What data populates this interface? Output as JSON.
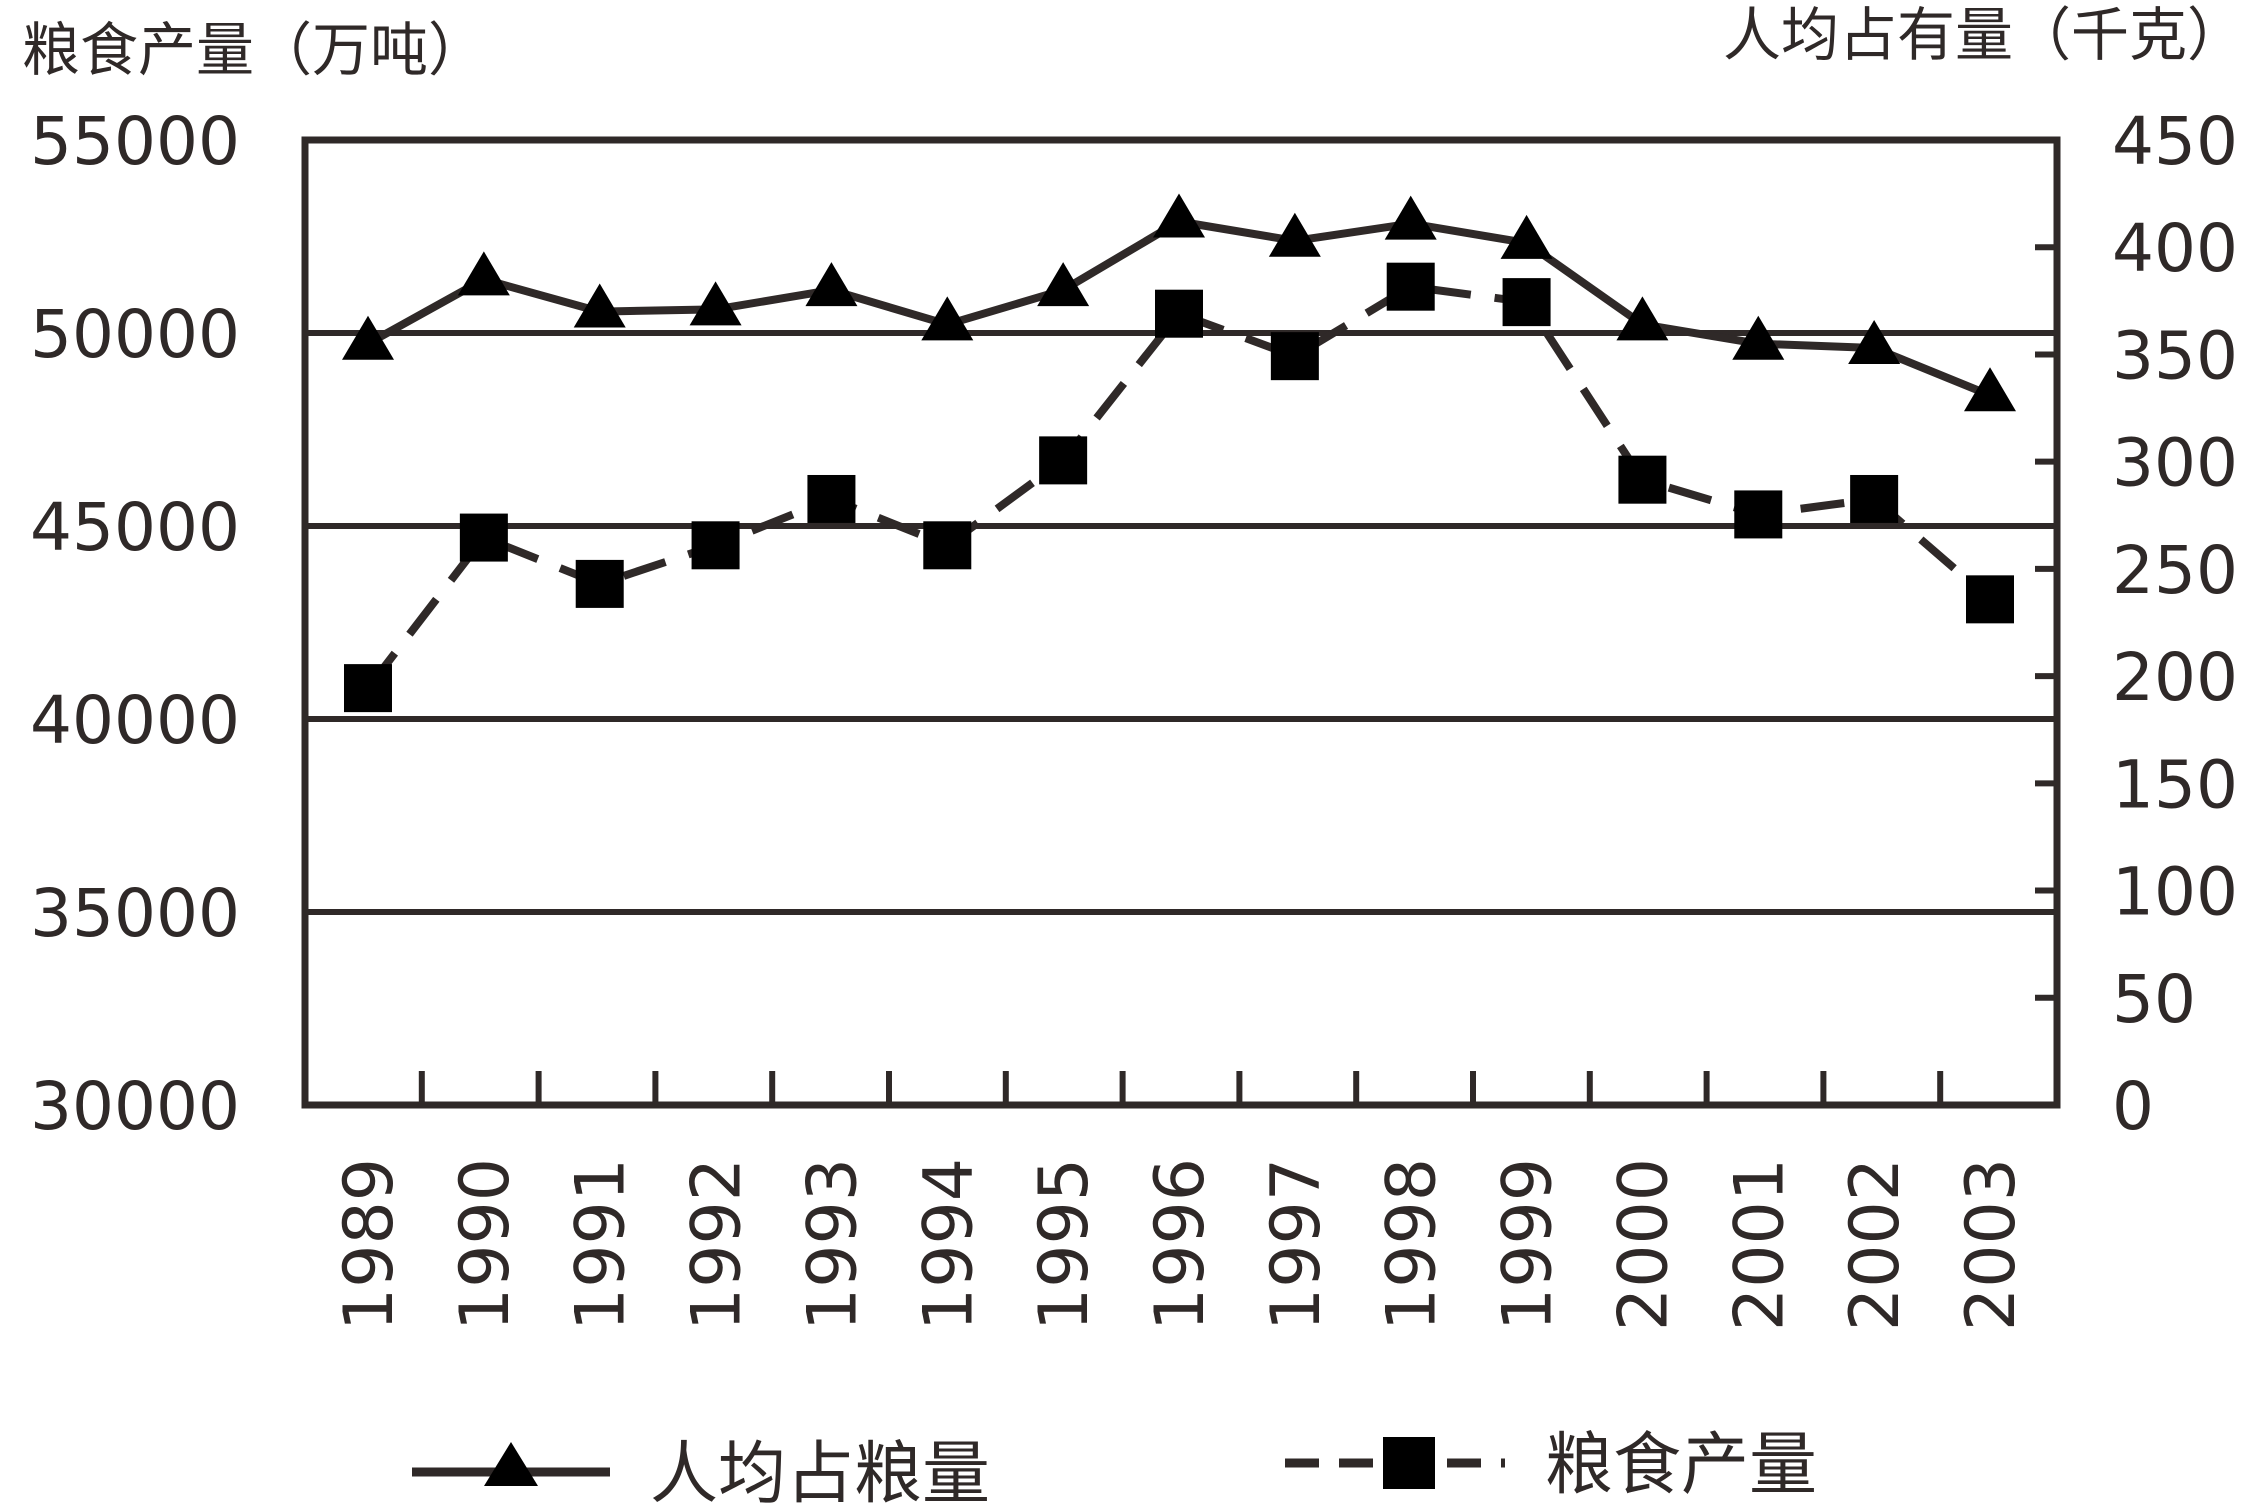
{
  "chart_data": {
    "type": "line",
    "left_axis_title": "粮食产量（万吨）",
    "right_axis_title": "人均占有量（千克）",
    "left_ticks": [
      "55000",
      "50000",
      "45000",
      "40000",
      "35000",
      "30000"
    ],
    "right_ticks": [
      "450",
      "400",
      "350",
      "300",
      "250",
      "200",
      "150",
      "100",
      "50",
      "0"
    ],
    "left_ylim": [
      30000,
      55000
    ],
    "right_ylim": [
      0,
      450
    ],
    "categories": [
      "1989",
      "1990",
      "1991",
      "1992",
      "1993",
      "1994",
      "1995",
      "1996",
      "1997",
      "1998",
      "1999",
      "2000",
      "2001",
      "2002",
      "2003"
    ],
    "grid": true,
    "legend_position": "bottom",
    "series": [
      {
        "name": "人均占粮量",
        "axis": "right",
        "marker": "triangle",
        "line_style": "solid",
        "values": [
          355,
          385,
          370,
          371,
          380,
          364,
          380,
          412,
          403,
          411,
          402,
          364,
          355,
          353,
          331
        ]
      },
      {
        "name": "粮食产量",
        "axis": "left",
        "marker": "square",
        "line_style": "dashed",
        "values": [
          40800,
          44700,
          43500,
          44500,
          45700,
          44500,
          46700,
          50500,
          49400,
          51200,
          50800,
          46200,
          45300,
          45700,
          43100
        ]
      }
    ]
  }
}
